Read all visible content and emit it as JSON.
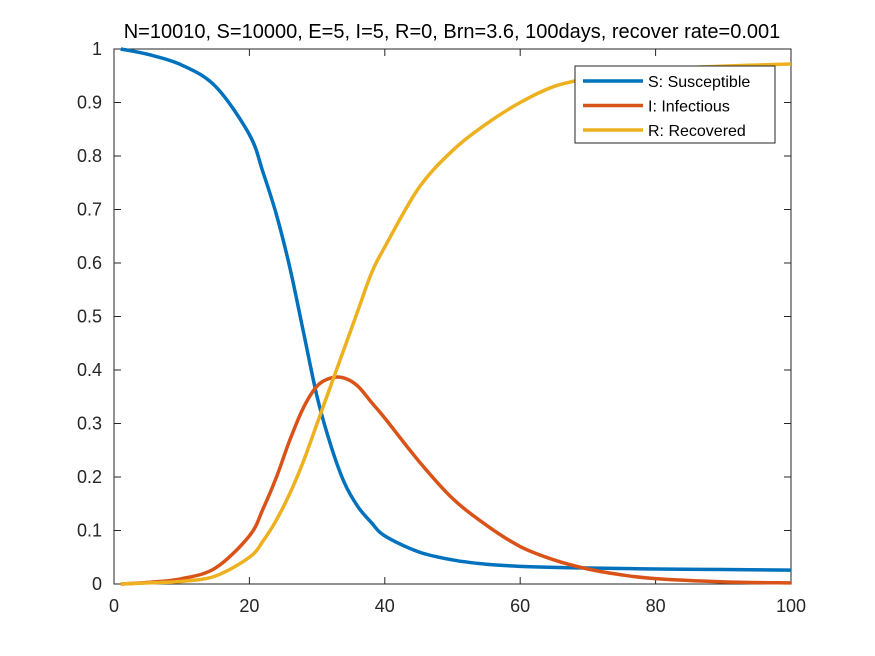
{
  "chart_data": {
    "type": "line",
    "title": "N=10010, S=10000, E=5, I=5, R=0, Brn=3.6, 100days, recover rate=0.001",
    "xlabel": "",
    "ylabel": "",
    "xlim": [
      0,
      100
    ],
    "ylim": [
      0,
      1
    ],
    "xticks": [
      0,
      20,
      40,
      60,
      80,
      100
    ],
    "yticks": [
      0,
      0.1,
      0.2,
      0.3,
      0.4,
      0.5,
      0.6,
      0.7,
      0.8,
      0.9,
      1
    ],
    "xtick_labels": [
      "0",
      "20",
      "40",
      "60",
      "80",
      "100"
    ],
    "ytick_labels": [
      "0",
      "0.1",
      "0.2",
      "0.3",
      "0.4",
      "0.5",
      "0.6",
      "0.7",
      "0.8",
      "0.9",
      "1"
    ],
    "grid": false,
    "legend_position": "top-right",
    "x": [
      1,
      5,
      10,
      15,
      20,
      22,
      24,
      26,
      28,
      30,
      32,
      34,
      36,
      38,
      40,
      45,
      50,
      55,
      60,
      65,
      70,
      75,
      80,
      90,
      100
    ],
    "series": [
      {
        "name": "S: Susceptible",
        "color": "#0072BD",
        "values": [
          1.0,
          0.99,
          0.97,
          0.93,
          0.84,
          0.77,
          0.69,
          0.59,
          0.47,
          0.35,
          0.26,
          0.19,
          0.145,
          0.115,
          0.09,
          0.06,
          0.045,
          0.037,
          0.033,
          0.031,
          0.03,
          0.029,
          0.028,
          0.027,
          0.026
        ]
      },
      {
        "name": "I: Infectious",
        "color": "#D95319",
        "values": [
          0.0,
          0.003,
          0.01,
          0.03,
          0.09,
          0.14,
          0.2,
          0.27,
          0.33,
          0.37,
          0.385,
          0.385,
          0.37,
          0.34,
          0.31,
          0.23,
          0.16,
          0.11,
          0.07,
          0.045,
          0.028,
          0.017,
          0.01,
          0.004,
          0.002
        ]
      },
      {
        "name": "R: Recovered",
        "color": "#EDB120",
        "values": [
          0.0,
          0.002,
          0.005,
          0.015,
          0.05,
          0.08,
          0.12,
          0.17,
          0.23,
          0.3,
          0.37,
          0.44,
          0.51,
          0.58,
          0.63,
          0.74,
          0.81,
          0.86,
          0.9,
          0.93,
          0.945,
          0.955,
          0.962,
          0.968,
          0.972
        ]
      }
    ]
  }
}
